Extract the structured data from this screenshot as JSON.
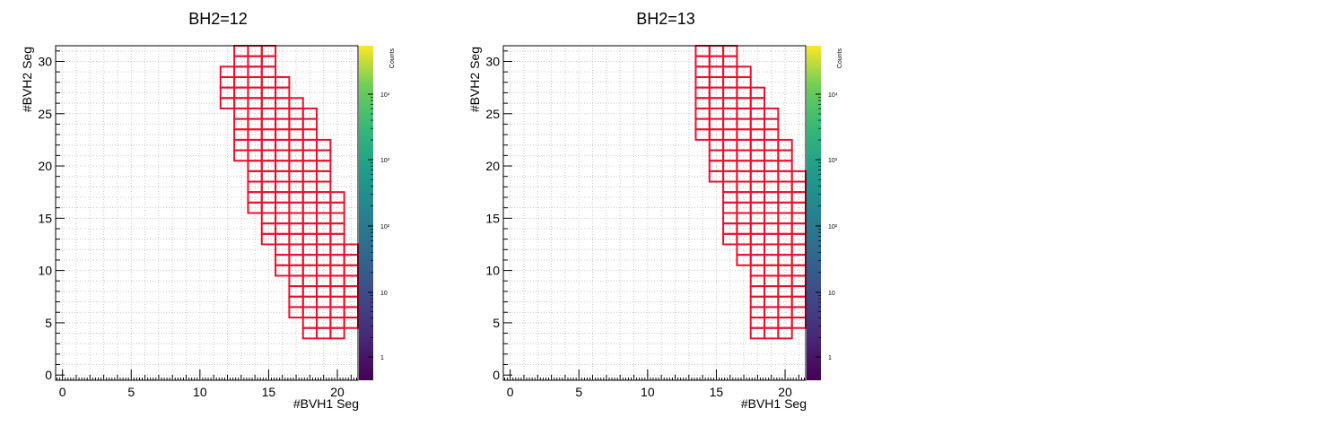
{
  "chart_data": [
    {
      "type": "heatmap",
      "title": "BH2=12",
      "xlabel": "#BVH1 Seg",
      "ylabel": "#BVH2 Seg",
      "zlabel": "Counts",
      "xlim": [
        -0.5,
        21.5
      ],
      "ylim": [
        -0.5,
        31.5
      ],
      "z_scale": "log",
      "xticks": [
        0,
        5,
        10,
        15,
        20
      ],
      "yticks": [
        0,
        5,
        10,
        15,
        20,
        25,
        30
      ],
      "zticks": [
        "1",
        "10",
        "10²",
        "10³",
        "10⁴"
      ],
      "grid": true,
      "box_color": "#e8112d",
      "rows": [
        {
          "y": 4,
          "x0": 18,
          "x1": 20
        },
        {
          "y": 5,
          "x0": 18,
          "x1": 21
        },
        {
          "y": 6,
          "x0": 17,
          "x1": 21
        },
        {
          "y": 7,
          "x0": 17,
          "x1": 21
        },
        {
          "y": 8,
          "x0": 17,
          "x1": 21
        },
        {
          "y": 9,
          "x0": 17,
          "x1": 21
        },
        {
          "y": 10,
          "x0": 16,
          "x1": 21
        },
        {
          "y": 11,
          "x0": 16,
          "x1": 21
        },
        {
          "y": 12,
          "x0": 16,
          "x1": 21
        },
        {
          "y": 13,
          "x0": 15,
          "x1": 20
        },
        {
          "y": 14,
          "x0": 15,
          "x1": 20
        },
        {
          "y": 15,
          "x0": 15,
          "x1": 20
        },
        {
          "y": 16,
          "x0": 14,
          "x1": 20
        },
        {
          "y": 17,
          "x0": 14,
          "x1": 20
        },
        {
          "y": 18,
          "x0": 14,
          "x1": 19
        },
        {
          "y": 19,
          "x0": 14,
          "x1": 19
        },
        {
          "y": 20,
          "x0": 14,
          "x1": 19
        },
        {
          "y": 21,
          "x0": 13,
          "x1": 19
        },
        {
          "y": 22,
          "x0": 13,
          "x1": 19
        },
        {
          "y": 23,
          "x0": 13,
          "x1": 18
        },
        {
          "y": 24,
          "x0": 13,
          "x1": 18
        },
        {
          "y": 25,
          "x0": 13,
          "x1": 18
        },
        {
          "y": 26,
          "x0": 12,
          "x1": 17
        },
        {
          "y": 27,
          "x0": 12,
          "x1": 16
        },
        {
          "y": 28,
          "x0": 12,
          "x1": 16
        },
        {
          "y": 29,
          "x0": 12,
          "x1": 15
        },
        {
          "y": 30,
          "x0": 13,
          "x1": 15
        },
        {
          "y": 31,
          "x0": 13,
          "x1": 15
        }
      ]
    },
    {
      "type": "heatmap",
      "title": "BH2=13",
      "xlabel": "#BVH1 Seg",
      "ylabel": "#BVH2 Seg",
      "zlabel": "Counts",
      "xlim": [
        -0.5,
        21.5
      ],
      "ylim": [
        -0.5,
        31.5
      ],
      "z_scale": "log",
      "xticks": [
        0,
        5,
        10,
        15,
        20
      ],
      "yticks": [
        0,
        5,
        10,
        15,
        20,
        25,
        30
      ],
      "zticks": [
        "1",
        "10",
        "10²",
        "10³",
        "10⁴"
      ],
      "grid": true,
      "box_color": "#e8112d",
      "rows": [
        {
          "y": 4,
          "x0": 18,
          "x1": 20
        },
        {
          "y": 5,
          "x0": 18,
          "x1": 21
        },
        {
          "y": 6,
          "x0": 18,
          "x1": 21
        },
        {
          "y": 7,
          "x0": 18,
          "x1": 21
        },
        {
          "y": 8,
          "x0": 18,
          "x1": 21
        },
        {
          "y": 9,
          "x0": 18,
          "x1": 21
        },
        {
          "y": 10,
          "x0": 18,
          "x1": 21
        },
        {
          "y": 11,
          "x0": 17,
          "x1": 21
        },
        {
          "y": 12,
          "x0": 17,
          "x1": 21
        },
        {
          "y": 13,
          "x0": 16,
          "x1": 21
        },
        {
          "y": 14,
          "x0": 16,
          "x1": 21
        },
        {
          "y": 15,
          "x0": 16,
          "x1": 21
        },
        {
          "y": 16,
          "x0": 16,
          "x1": 21
        },
        {
          "y": 17,
          "x0": 16,
          "x1": 21
        },
        {
          "y": 18,
          "x0": 16,
          "x1": 21
        },
        {
          "y": 19,
          "x0": 15,
          "x1": 21
        },
        {
          "y": 20,
          "x0": 15,
          "x1": 20
        },
        {
          "y": 21,
          "x0": 15,
          "x1": 20
        },
        {
          "y": 22,
          "x0": 15,
          "x1": 20
        },
        {
          "y": 23,
          "x0": 14,
          "x1": 19
        },
        {
          "y": 24,
          "x0": 14,
          "x1": 19
        },
        {
          "y": 25,
          "x0": 14,
          "x1": 19
        },
        {
          "y": 26,
          "x0": 14,
          "x1": 18
        },
        {
          "y": 27,
          "x0": 14,
          "x1": 18
        },
        {
          "y": 28,
          "x0": 14,
          "x1": 17
        },
        {
          "y": 29,
          "x0": 14,
          "x1": 17
        },
        {
          "y": 30,
          "x0": 14,
          "x1": 16
        },
        {
          "y": 31,
          "x0": 14,
          "x1": 16
        }
      ]
    }
  ]
}
